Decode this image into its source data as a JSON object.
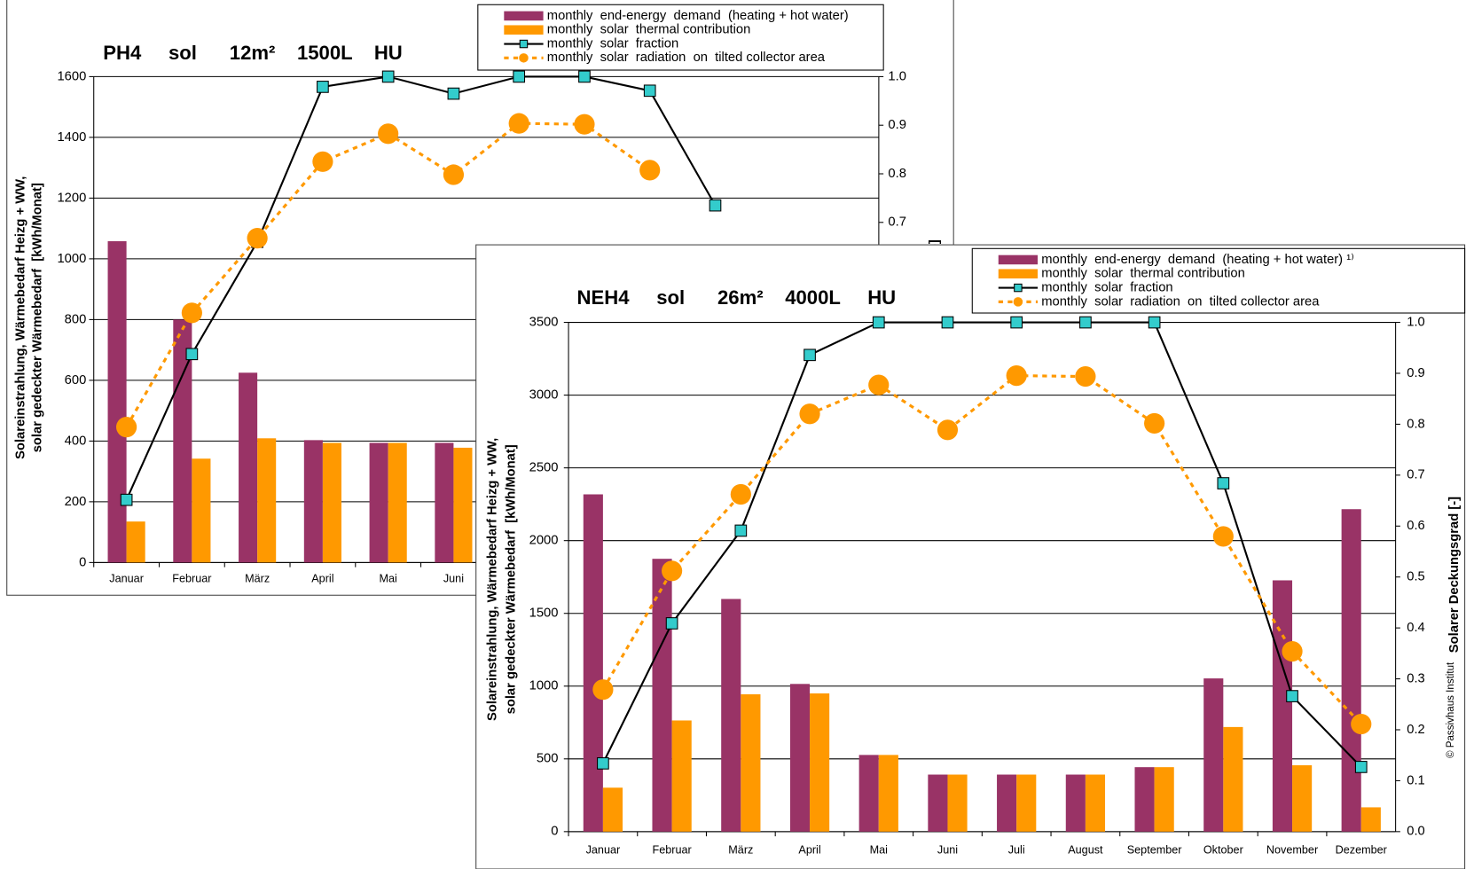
{
  "chart_data": [
    {
      "type": "bar",
      "title": "PH4     sol      12m²    1500L    HU",
      "ylabel": [
        "Solareinstrahlung, Wärmebedarf Heizg + WW,",
        "solar gedeckter Wärmebedarf  [kWh/Monat]"
      ],
      "y2label": "Solarer Deckungsgrad [-]",
      "categories": [
        "Januar",
        "Februar",
        "März",
        "April",
        "Mai",
        "Juni",
        null,
        null,
        null,
        null,
        null,
        null
      ],
      "ylim": [
        0,
        1600
      ],
      "yticks": [
        0,
        200,
        400,
        600,
        800,
        1000,
        1200,
        1400,
        1600
      ],
      "y2lim": [
        0,
        1
      ],
      "y2ticks": [
        {
          "value": 0,
          "label": "0.0"
        },
        {
          "value": 0.1,
          "label": "0.1"
        },
        {
          "value": 0.2,
          "label": "0.2"
        },
        {
          "value": 0.3,
          "label": "0.3"
        },
        {
          "value": 0.4,
          "label": "0.4"
        },
        {
          "value": 0.5,
          "label": "0.5"
        },
        {
          "value": 0.6,
          "label": "0.6"
        },
        {
          "value": 0.7,
          "label": "0.7"
        },
        {
          "value": 0.8,
          "label": "0.8"
        },
        {
          "value": 0.9,
          "label": "0.9"
        },
        {
          "value": 1,
          "label": "1.0"
        }
      ],
      "grid": true,
      "series": [
        {
          "name": "monthly  end-energy  demand  (heating + hot water)",
          "type": "bar",
          "color": "#993366",
          "values": [
            1058,
            800,
            625,
            403,
            394,
            394,
            null,
            null,
            null,
            null,
            null,
            null
          ]
        },
        {
          "name": "monthly  solar  thermal contribution",
          "type": "bar",
          "color": "#ff9900",
          "values": [
            135,
            342,
            409,
            394,
            394,
            378,
            null,
            null,
            null,
            null,
            null,
            null
          ]
        },
        {
          "name": "monthly  solar  fraction",
          "type": "line",
          "axis": "y2",
          "color": "#000000",
          "marker_color": "#33cccc",
          "marker": "square",
          "values": [
            0.129,
            0.429,
            0.66,
            0.979,
            1,
            0.965,
            1,
            1,
            0.971,
            0.735,
            null,
            null
          ]
        },
        {
          "name": "monthly  solar  radiation  on  tilted collector area",
          "type": "line",
          "color": "#ff9900",
          "marker_color": "#ff9900",
          "marker": "circle",
          "dashed": true,
          "values": [
            446,
            822,
            1068,
            1320,
            1412,
            1277,
            1446,
            1443,
            1292,
            null,
            null,
            null
          ]
        }
      ]
    },
    {
      "type": "bar",
      "title": "NEH4     sol      26m²    4000L     HU",
      "ylabel": [
        "Solareinstrahlung, Wärmebedarf Heizg + WW,",
        "solar gedeckter Wärmebedarf  [kWh/Monat]"
      ],
      "y2label": "Solarer Deckungsgrad [-]",
      "annotation": "© Passivhaus Institut",
      "categories": [
        "Januar",
        "Februar",
        "März",
        "April",
        "Mai",
        "Juni",
        "Juli",
        "August",
        "September",
        "Oktober",
        "November",
        "Dezember"
      ],
      "ylim": [
        0,
        3500
      ],
      "yticks": [
        0,
        500,
        1000,
        1500,
        2000,
        2500,
        3000,
        3500
      ],
      "y2lim": [
        0,
        1
      ],
      "y2ticks": [
        {
          "value": 0,
          "label": "0.0"
        },
        {
          "value": 0.1,
          "label": "0.1"
        },
        {
          "value": 0.2,
          "label": "0.2"
        },
        {
          "value": 0.3,
          "label": "0.3"
        },
        {
          "value": 0.4,
          "label": "0.4"
        },
        {
          "value": 0.5,
          "label": "0.5"
        },
        {
          "value": 0.6,
          "label": "0.6"
        },
        {
          "value": 0.7,
          "label": "0.7"
        },
        {
          "value": 0.8,
          "label": "0.8"
        },
        {
          "value": 0.9,
          "label": "0.9"
        },
        {
          "value": 1,
          "label": "1.0"
        }
      ],
      "grid": true,
      "series": [
        {
          "name": "monthly  end-energy  demand  (heating + hot water) ¹⁾",
          "type": "bar",
          "color": "#993366",
          "values": [
            2318,
            1875,
            1599,
            1015,
            527,
            392,
            392,
            392,
            443,
            1053,
            1727,
            2216
          ]
        },
        {
          "name": "monthly  solar  thermal contribution",
          "type": "bar",
          "color": "#ff9900",
          "values": [
            302,
            764,
            944,
            950,
            527,
            392,
            392,
            392,
            443,
            719,
            456,
            167
          ]
        },
        {
          "name": "monthly  solar  fraction",
          "type": "line",
          "axis": "y2",
          "color": "#000000",
          "marker_color": "#33cccc",
          "marker": "square",
          "values": [
            0.134,
            0.409,
            0.591,
            0.936,
            1,
            1,
            1,
            1,
            1,
            0.684,
            0.266,
            0.127
          ]
        },
        {
          "name": "monthly  solar  radiation  on  tilted collector area",
          "type": "line",
          "color": "#ff9900",
          "marker_color": "#ff9900",
          "marker": "circle",
          "dashed": true,
          "values": [
            976,
            1792,
            2318,
            2871,
            3070,
            2761,
            3134,
            3128,
            2806,
            2029,
            1239,
            739
          ]
        }
      ]
    }
  ]
}
